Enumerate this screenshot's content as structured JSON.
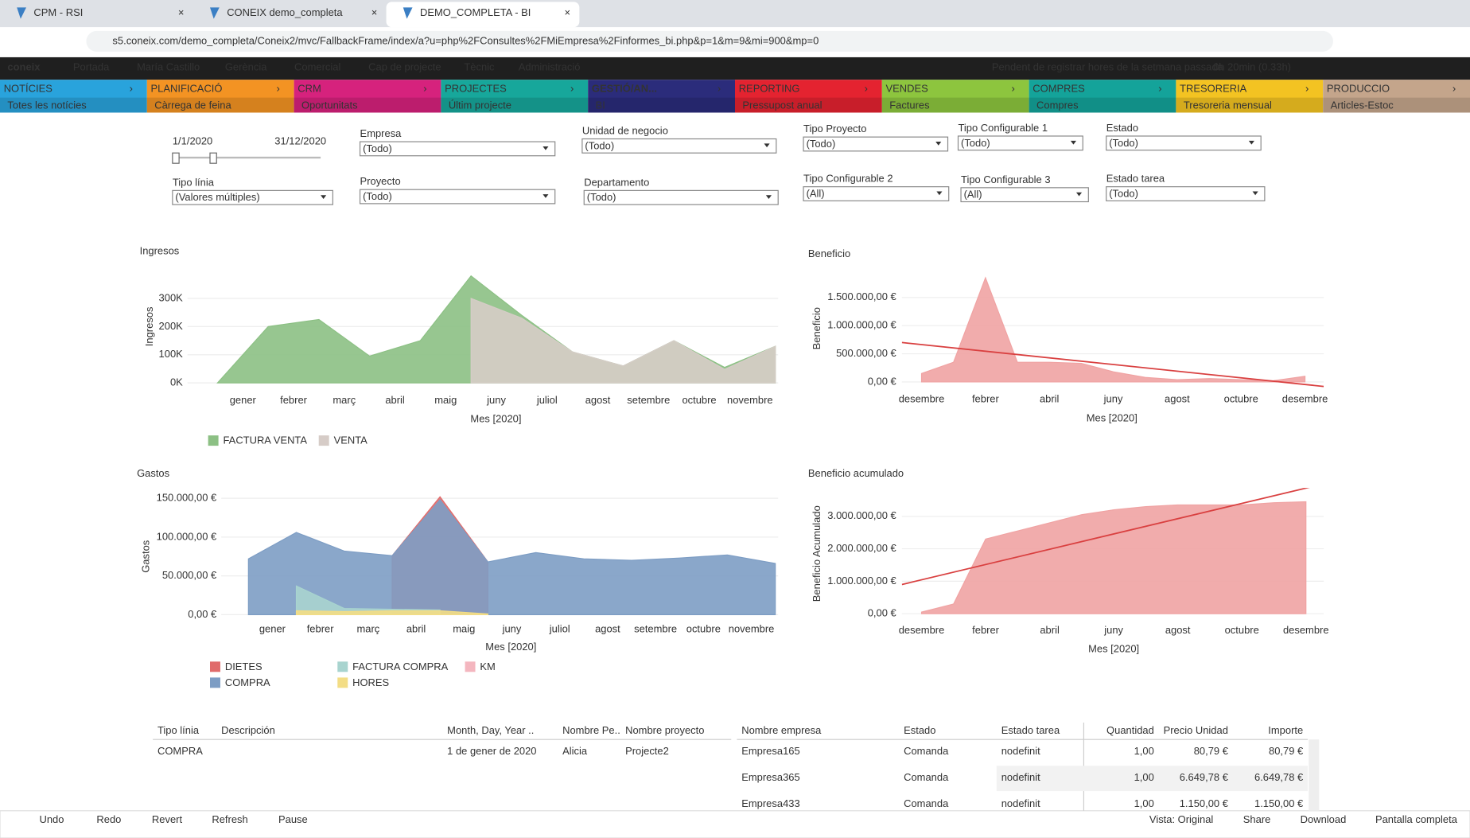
{
  "browser": {
    "tabs": [
      "CPM - RSI",
      "CONEIX demo_completa",
      "DEMO_COMPLETA - BI"
    ],
    "url": "s5.coneix.com/demo_completa/Coneix2/mvc/FallbackFrame/index/a?u=php%2FConsultes%2FMiEmpresa%2Finformes_bi.php&p=1&m=9&mi=900&mp=0"
  },
  "topbar": {
    "logo": "coneix",
    "items": [
      "Portada",
      "María Castillo",
      "Gerència",
      "Comercial",
      "Cap de projecte",
      "Tècnic",
      "Administració"
    ],
    "warning": "Pendent de registrar hores de la setmana passada",
    "time": "0h 20min (0.33h)"
  },
  "modules": [
    {
      "name": "NOTÍCIES",
      "sub": "Totes les notícies",
      "color": "#29a3dc"
    },
    {
      "name": "PLANIFICACIÓ",
      "sub": "Càrrega de feina",
      "color": "#f39323"
    },
    {
      "name": "CRM",
      "sub": "Oportunitats",
      "color": "#d6227d"
    },
    {
      "name": "PROJECTES",
      "sub": "Últim projecte",
      "color": "#17a79b"
    },
    {
      "name": "GESTIÓ/AN...",
      "sub": "BI",
      "color": "#2b2c7b"
    },
    {
      "name": "REPORTING",
      "sub": "Pressupost anual",
      "color": "#e42330"
    },
    {
      "name": "VENDES",
      "sub": "Factures",
      "color": "#8dc53e"
    },
    {
      "name": "COMPRES",
      "sub": "Compres",
      "color": "#14a39a"
    },
    {
      "name": "TRESORERIA",
      "sub": "Tresoreria mensual",
      "color": "#f3c322"
    },
    {
      "name": "PRODUCCIO",
      "sub": "Articles-Estoc",
      "color": "#c4a58b"
    }
  ],
  "filters": {
    "date_from": "1/1/2020",
    "date_to": "31/12/2020",
    "fields": [
      {
        "label": "Empresa",
        "value": "(Todo)"
      },
      {
        "label": "Unidad de negocio",
        "value": "(Todo)"
      },
      {
        "label": "Tipo Proyecto",
        "value": "(Todo)"
      },
      {
        "label": "Tipo Configurable 1",
        "value": "(Todo)"
      },
      {
        "label": "Estado",
        "value": "(Todo)"
      },
      {
        "label": "Tipo línia",
        "value": "(Valores múltiples)"
      },
      {
        "label": "Proyecto",
        "value": "(Todo)"
      },
      {
        "label": "Departamento",
        "value": "(Todo)"
      },
      {
        "label": "Tipo Configurable 2",
        "value": "(All)"
      },
      {
        "label": "Tipo Configurable 3",
        "value": "(All)"
      },
      {
        "label": "Estado tarea",
        "value": "(Todo)"
      }
    ]
  },
  "chart_data": [
    {
      "type": "area",
      "title": "Ingresos",
      "y_label": "Ingresos",
      "x_label": "Mes [2020]",
      "categories": [
        "gener",
        "febrer",
        "març",
        "abril",
        "maig",
        "juny",
        "juliol",
        "agost",
        "setembre",
        "octubre",
        "novembre",
        null
      ],
      "series": [
        {
          "name": "FACTURA VENTA",
          "color": "#8cc084",
          "values": [
            0,
            200000,
            225000,
            95000,
            150000,
            380000,
            240000,
            110000,
            60000,
            150000,
            55000,
            130000
          ]
        },
        {
          "name": "VENTA",
          "color": "#d6ccc7",
          "values": [
            null,
            null,
            null,
            null,
            null,
            300000,
            230000,
            110000,
            60000,
            150000,
            48000,
            130000
          ]
        }
      ],
      "ylim": [
        0,
        400000
      ],
      "yticks": [
        {
          "value": 0,
          "label": "0K"
        },
        {
          "value": 100000,
          "label": "100K"
        },
        {
          "value": 200000,
          "label": "200K"
        },
        {
          "value": 300000,
          "label": "300K"
        }
      ]
    },
    {
      "type": "area",
      "title": "Beneficio",
      "y_label": "Beneficio",
      "x_label": "Mes [2020]",
      "categories": [
        "desembre",
        null,
        "febrer",
        null,
        "abril",
        null,
        "juny",
        null,
        "agost",
        null,
        "octubre",
        null,
        "desembre"
      ],
      "series": [
        {
          "name": "Beneficio",
          "color": "#f0a3a3",
          "values": [
            150000,
            350000,
            1850000,
            350000,
            350000,
            330000,
            180000,
            80000,
            40000,
            60000,
            40000,
            20000,
            100000
          ]
        }
      ],
      "trendline": [
        700000,
        -80000
      ],
      "trend_color": "#d94040",
      "ylim": [
        -100000,
        2000000
      ],
      "yticks": [
        {
          "value": 0,
          "label": "0,00 €"
        },
        {
          "value": 500000,
          "label": "500.000,00 €"
        },
        {
          "value": 1000000,
          "label": "1.000.000,00 €"
        },
        {
          "value": 1500000,
          "label": "1.500.000,00 €"
        }
      ]
    },
    {
      "type": "area",
      "title": "Gastos",
      "y_label": "Gastos",
      "x_label": "Mes [2020]",
      "categories": [
        "gener",
        "febrer",
        "març",
        "abril",
        "maig",
        "juny",
        "juliol",
        "agost",
        "setembre",
        "octubre",
        "novembre",
        null
      ],
      "series": [
        {
          "name": "DIETES",
          "color": "#e06b6b",
          "values": [
            null,
            null,
            null,
            76000,
            152000,
            68000,
            null,
            null,
            null,
            null,
            null,
            null
          ]
        },
        {
          "name": "FACTURA COMPRA",
          "color": "#a8d4cf",
          "values": [
            null,
            37000,
            8000,
            7000,
            6000,
            null,
            null,
            null,
            null,
            null,
            null,
            null
          ]
        },
        {
          "name": "KM",
          "color": "#f4b6bf",
          "values": [
            null,
            null,
            null,
            null,
            null,
            null,
            null,
            null,
            null,
            null,
            null,
            null
          ]
        },
        {
          "name": "COMPRA",
          "color": "#7d9dc4",
          "values": [
            72000,
            106000,
            82000,
            76000,
            148000,
            68000,
            80000,
            72000,
            70000,
            73000,
            77000,
            66000
          ]
        },
        {
          "name": "HORES",
          "color": "#f3dd85",
          "values": [
            null,
            5000,
            4000,
            5000,
            5000,
            1000,
            null,
            null,
            null,
            null,
            null,
            null
          ]
        }
      ],
      "ylim": [
        0,
        150000
      ],
      "yticks": [
        {
          "value": 0,
          "label": "0,00 €"
        },
        {
          "value": 50000,
          "label": "50.000,00 €"
        },
        {
          "value": 100000,
          "label": "100.000,00 €"
        },
        {
          "value": 150000,
          "label": "150.000,00 €"
        }
      ]
    },
    {
      "type": "area",
      "title": "Beneficio acumulado",
      "y_label": "Beneficio Acumulado",
      "x_label": "Mes  [2020]",
      "categories": [
        "desembre",
        null,
        "febrer",
        null,
        "abril",
        null,
        "juny",
        null,
        "agost",
        null,
        "octubre",
        null,
        "desembre"
      ],
      "series": [
        {
          "name": "Beneficio acumulado",
          "color": "#f0a3a3",
          "values": [
            50000,
            300000,
            2300000,
            2550000,
            2800000,
            3050000,
            3200000,
            3300000,
            3350000,
            3350000,
            3350000,
            3420000,
            3450000
          ]
        }
      ],
      "trendline": [
        900000,
        4000000
      ],
      "trend_color": "#d94040",
      "ylim": [
        0,
        3700000
      ],
      "yticks": [
        {
          "value": 0,
          "label": "0,00 €"
        },
        {
          "value": 1000000,
          "label": "1.000.000,00 €"
        },
        {
          "value": 2000000,
          "label": "2.000.000,00 €"
        },
        {
          "value": 3000000,
          "label": "3.000.000,00 €"
        }
      ]
    }
  ],
  "table": {
    "left_columns": [
      "Tipo línia",
      "Descripción",
      "Month, Day, Year ..",
      "Nombre Pe..",
      "Nombre proyecto"
    ],
    "right_columns": [
      "Nombre empresa",
      "Estado",
      "Estado tarea",
      "Quantidad",
      "Precio Unidad",
      "Importe"
    ],
    "left_rows": [
      {
        "tipo": "COMPRA",
        "fecha": "1 de gener de 2020",
        "persona": "Alicia",
        "proyecto": "Projecte2"
      }
    ],
    "right_rows": [
      [
        "Empresa165",
        "Comanda",
        "nodefinit",
        "1,00",
        "80,79 €",
        "80,79 €"
      ],
      [
        "Empresa365",
        "Comanda",
        "nodefinit",
        "1,00",
        "6.649,78 €",
        "6.649,78 €"
      ],
      [
        "Empresa433",
        "Comanda",
        "nodefinit",
        "1,00",
        "1.150,00 €",
        "1.150,00 €"
      ]
    ]
  },
  "toolbar": {
    "left": [
      "Undo",
      "Redo",
      "Revert",
      "Refresh",
      "Pause"
    ],
    "right": [
      "Vista: Original",
      "Share",
      "Download",
      "Pantalla completa"
    ]
  }
}
